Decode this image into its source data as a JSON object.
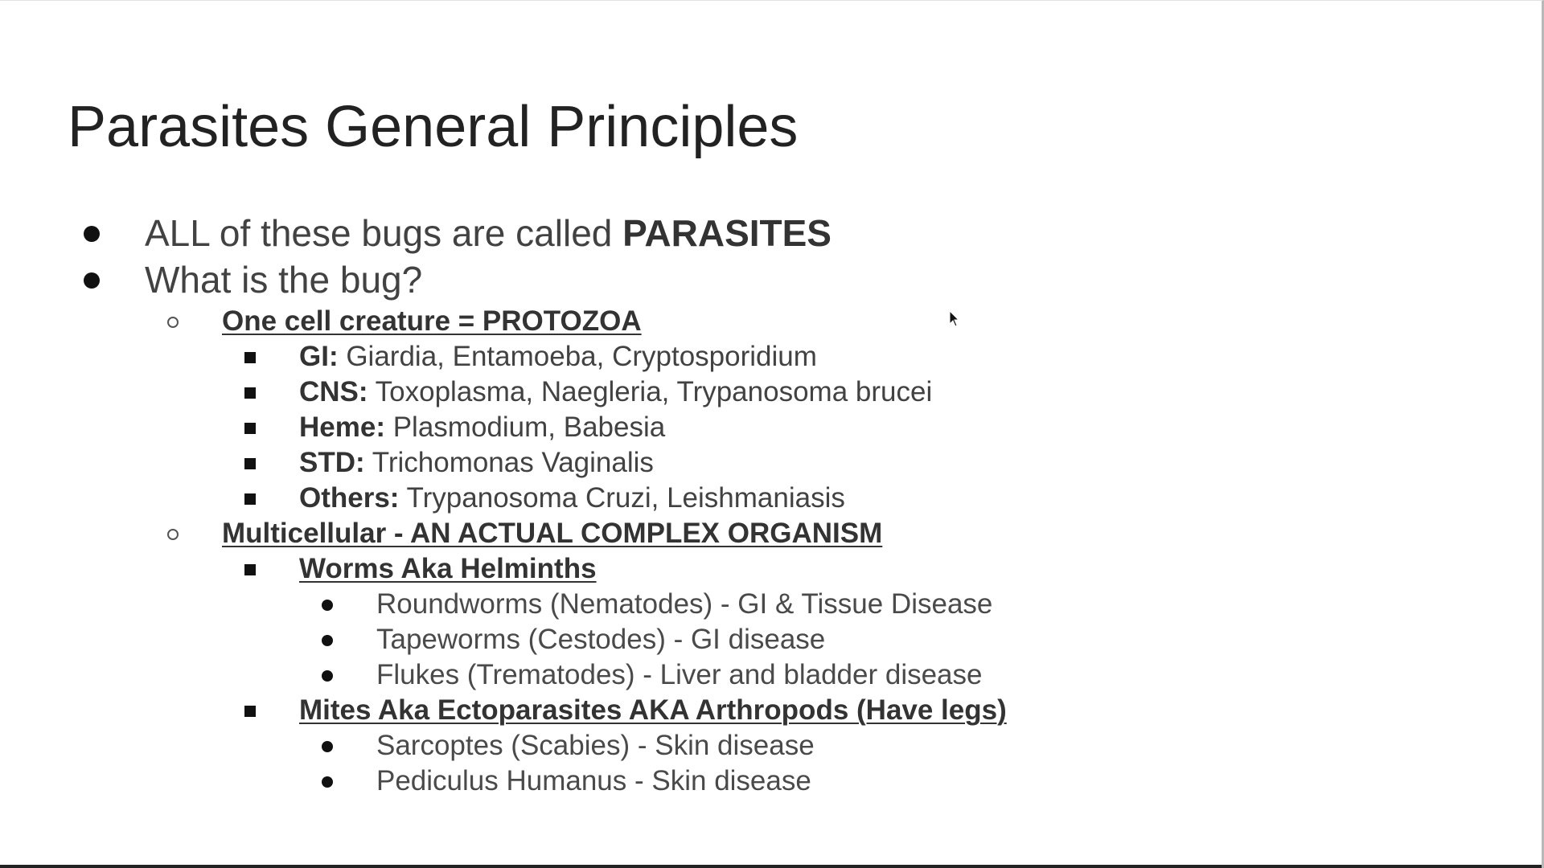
{
  "slide": {
    "title": "Parasites General Principles",
    "bullets": [
      {
        "prefix": "ALL of these bugs are called ",
        "strong": "PARASITES"
      },
      {
        "text": "What is the bug?"
      }
    ],
    "protozoa": {
      "heading": "One cell creature = PROTOZOA",
      "items": [
        {
          "label": "GI:",
          "text": " Giardia, Entamoeba, Cryptosporidium"
        },
        {
          "label": "CNS:",
          "text": " Toxoplasma, Naegleria, Trypanosoma brucei"
        },
        {
          "label": "Heme:",
          "text": " Plasmodium, Babesia"
        },
        {
          "label": "STD:",
          "text": " Trichomonas Vaginalis"
        },
        {
          "label": "Others:",
          "text": " Trypanosoma Cruzi, Leishmaniasis"
        }
      ]
    },
    "multicellular": {
      "heading": "Multicellular - AN ACTUAL COMPLEX ORGANISM",
      "worms": {
        "heading": "Worms Aka Helminths",
        "items": [
          "Roundworms (Nematodes) - GI & Tissue Disease",
          "Tapeworms (Cestodes) - GI disease",
          "Flukes (Trematodes) - Liver and bladder disease"
        ]
      },
      "mites": {
        "heading": "Mites Aka Ectoparasites AKA Arthropods (Have legs)",
        "items": [
          "Sarcoptes (Scabies) - Skin disease",
          "Pediculus Humanus - Skin disease"
        ]
      }
    }
  }
}
